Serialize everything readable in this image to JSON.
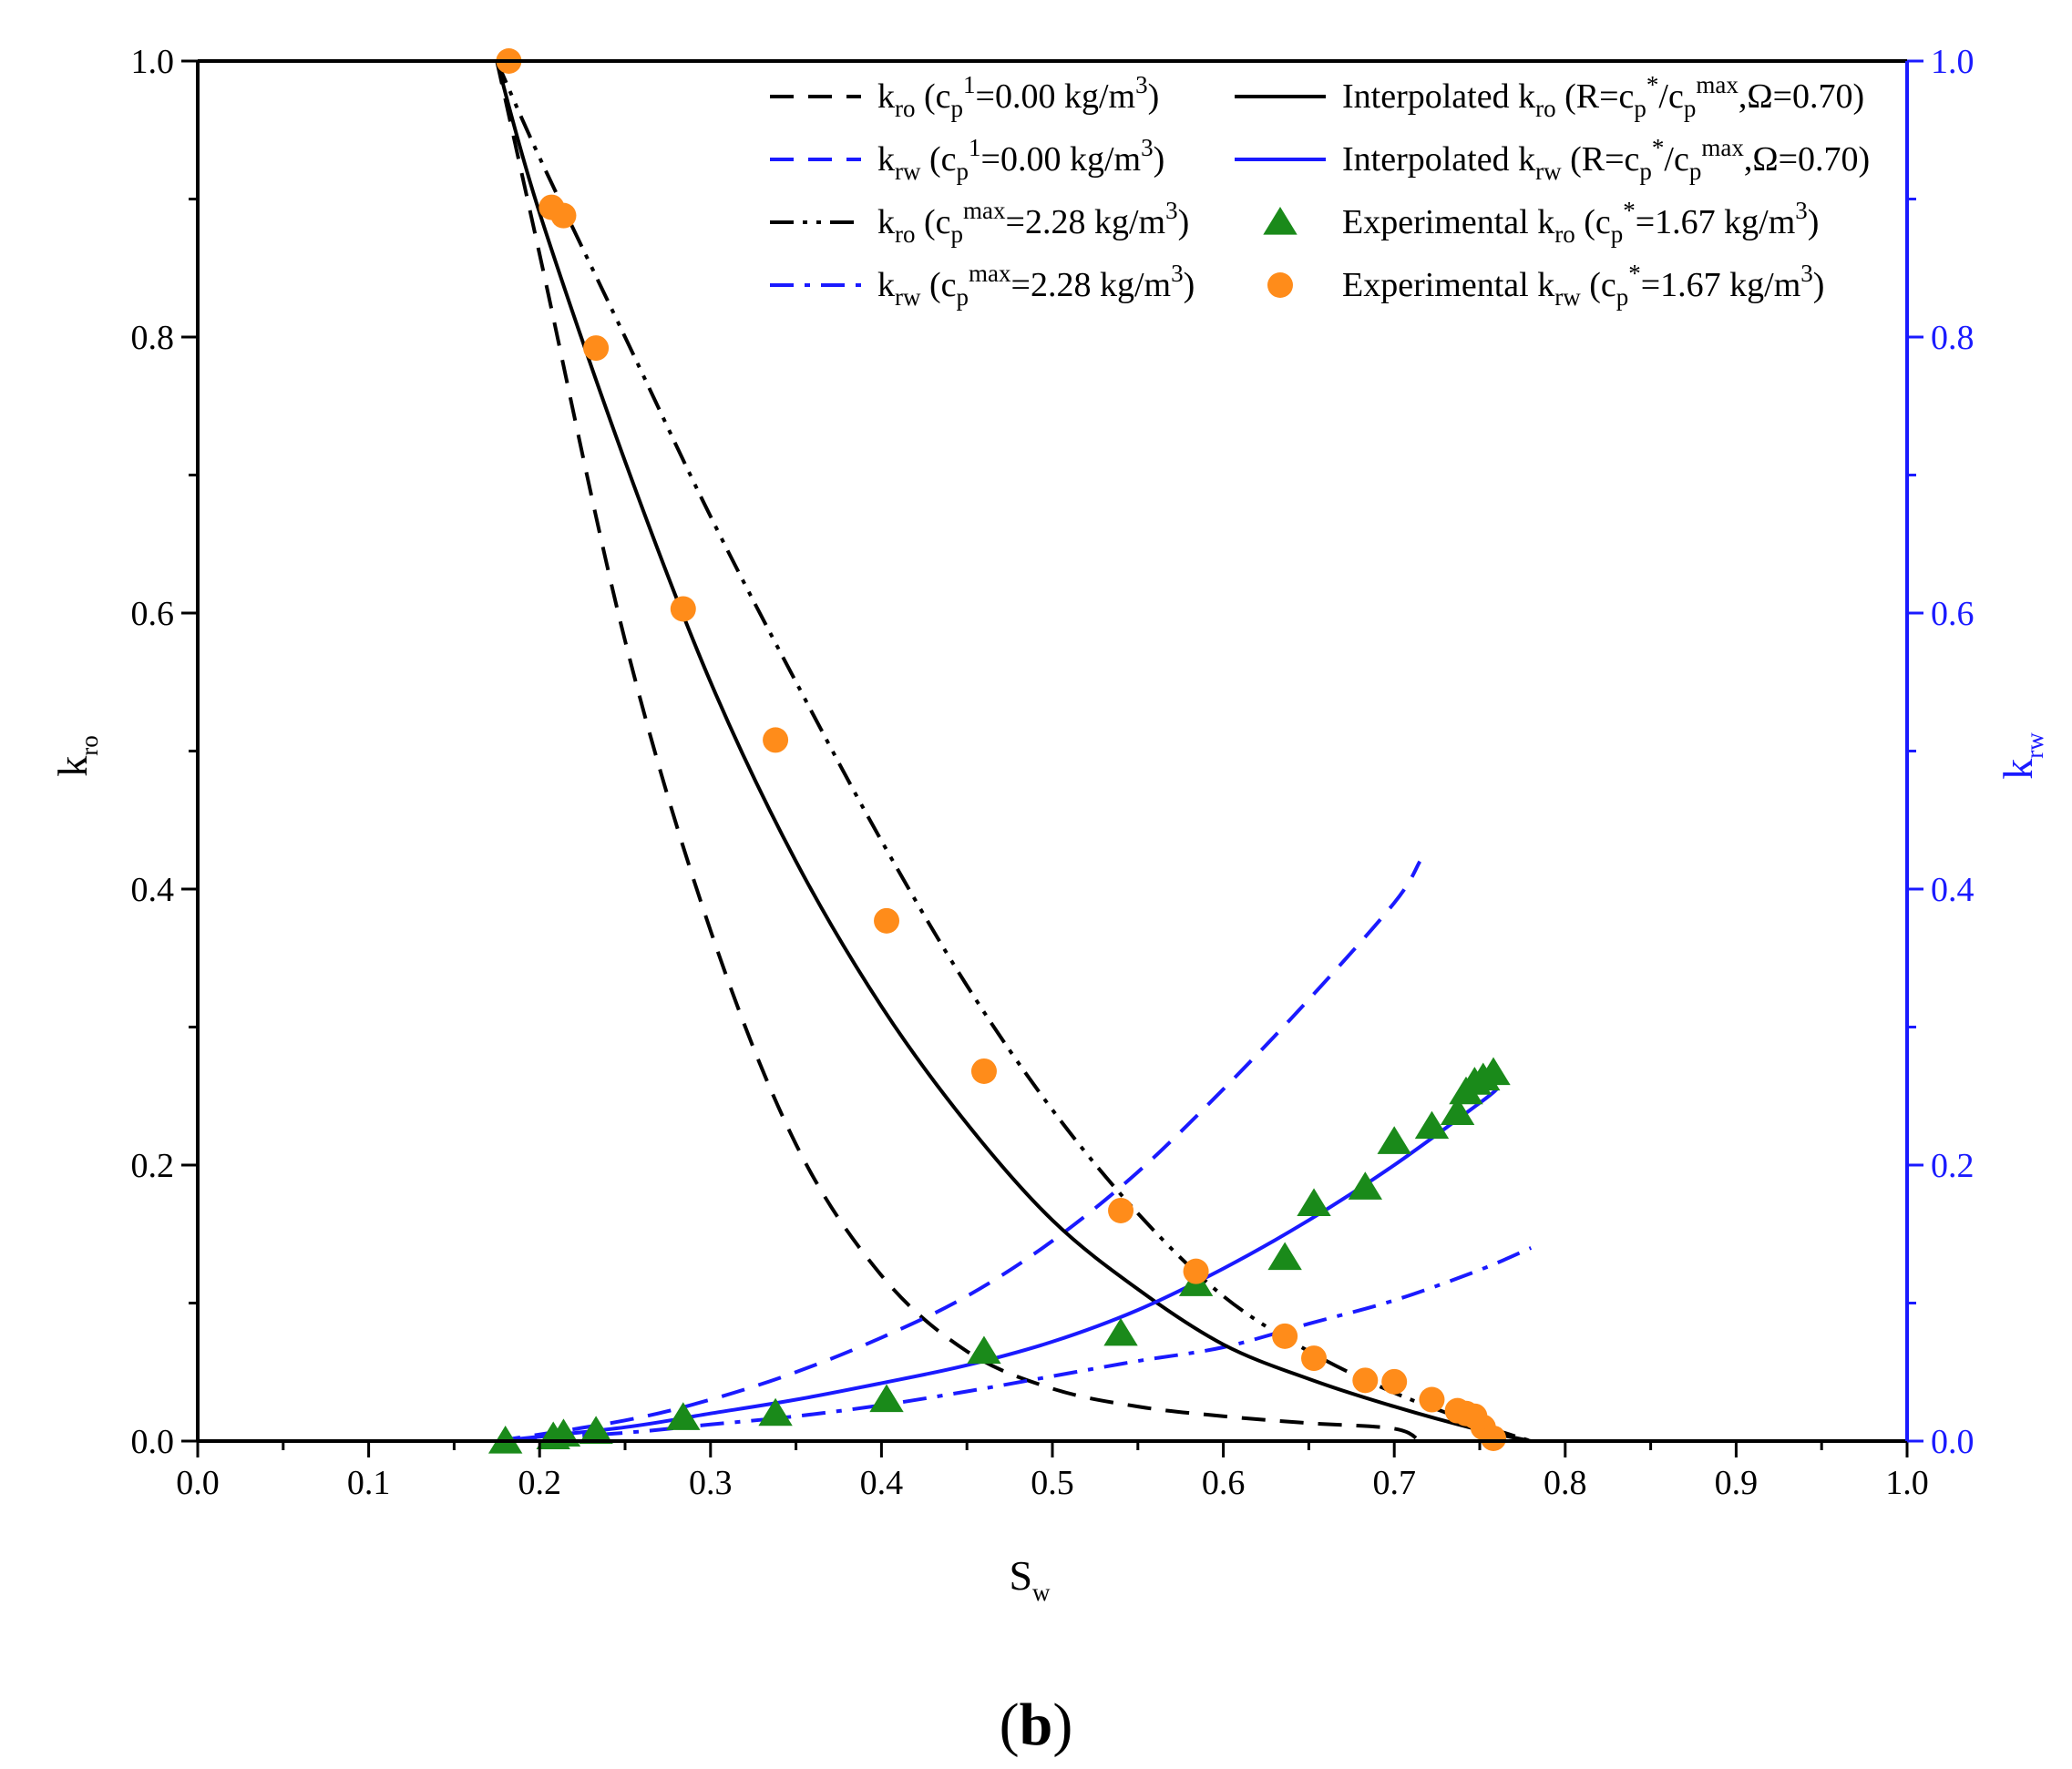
{
  "chart_data": {
    "type": "line",
    "panel_label": "b",
    "x_axis": {
      "label": "S",
      "label_sub": "w",
      "range": [
        0.0,
        1.0
      ],
      "ticks": [
        0.0,
        0.1,
        0.2,
        0.3,
        0.4,
        0.5,
        0.6,
        0.7,
        0.8,
        0.9,
        1.0
      ],
      "tick_labels": [
        "0.0",
        "0.1",
        "0.2",
        "0.3",
        "0.4",
        "0.5",
        "0.6",
        "0.7",
        "0.8",
        "0.9",
        "1.0"
      ]
    },
    "y_left": {
      "label": "k",
      "label_sub": "ro",
      "range": [
        0.0,
        1.0
      ],
      "ticks": [
        0.0,
        0.2,
        0.4,
        0.6,
        0.8,
        1.0
      ],
      "tick_labels": [
        "0.0",
        "0.2",
        "0.4",
        "0.6",
        "0.8",
        "1.0"
      ],
      "color": "#000000"
    },
    "y_right": {
      "label": "k",
      "label_sub": "rw",
      "range": [
        0.0,
        1.0
      ],
      "ticks": [
        0.0,
        0.2,
        0.4,
        0.6,
        0.8,
        1.0
      ],
      "tick_labels": [
        "0.0",
        "0.2",
        "0.4",
        "0.6",
        "0.8",
        "1.0"
      ],
      "color": "#1a1aff"
    },
    "series": [
      {
        "name": "kro_c1",
        "style": "dashed",
        "color": "#000000",
        "legend": [
          {
            "t": "k"
          },
          {
            "t": "ro",
            "s": "sub"
          },
          {
            "t": " (c"
          },
          {
            "t": "p",
            "s": "sub"
          },
          {
            "t": "1",
            "s": "sup"
          },
          {
            "t": "=0.00 kg/m"
          },
          {
            "t": "3",
            "s": "sup"
          },
          {
            "t": ")"
          }
        ],
        "x": [
          0.175,
          0.2,
          0.25,
          0.3,
          0.35,
          0.4,
          0.45,
          0.5,
          0.55,
          0.6,
          0.65,
          0.7,
          0.715
        ],
        "y": [
          1.0,
          0.86,
          0.58,
          0.37,
          0.215,
          0.12,
          0.065,
          0.038,
          0.025,
          0.018,
          0.013,
          0.009,
          0.0
        ]
      },
      {
        "name": "krw_c1",
        "style": "dashed",
        "color": "#1a1aff",
        "legend": [
          {
            "t": "k"
          },
          {
            "t": "rw",
            "s": "sub"
          },
          {
            "t": " (c"
          },
          {
            "t": "p",
            "s": "sub"
          },
          {
            "t": "1",
            "s": "sup"
          },
          {
            "t": "=0.00 kg/m"
          },
          {
            "t": "3",
            "s": "sup"
          },
          {
            "t": ")"
          }
        ],
        "x": [
          0.175,
          0.25,
          0.3,
          0.35,
          0.4,
          0.45,
          0.5,
          0.55,
          0.6,
          0.65,
          0.7,
          0.715
        ],
        "y": [
          0.0,
          0.015,
          0.03,
          0.05,
          0.075,
          0.105,
          0.145,
          0.195,
          0.255,
          0.32,
          0.39,
          0.42
        ]
      },
      {
        "name": "kro_cmax",
        "style": "dashdotdot",
        "color": "#000000",
        "legend": [
          {
            "t": "k"
          },
          {
            "t": "ro",
            "s": "sub"
          },
          {
            "t": " (c"
          },
          {
            "t": "p",
            "s": "sub"
          },
          {
            "t": "max",
            "s": "sup"
          },
          {
            "t": "=2.28 kg/m"
          },
          {
            "t": "3",
            "s": "sup"
          },
          {
            "t": ")"
          }
        ],
        "x": [
          0.175,
          0.2,
          0.25,
          0.3,
          0.35,
          0.4,
          0.45,
          0.5,
          0.55,
          0.6,
          0.65,
          0.7,
          0.75,
          0.78
        ],
        "y": [
          1.0,
          0.93,
          0.8,
          0.67,
          0.55,
          0.435,
          0.33,
          0.24,
          0.165,
          0.105,
          0.065,
          0.035,
          0.012,
          0.0
        ]
      },
      {
        "name": "krw_cmax",
        "style": "dashdot",
        "color": "#1a1aff",
        "legend": [
          {
            "t": "k"
          },
          {
            "t": "rw",
            "s": "sub"
          },
          {
            "t": " (c"
          },
          {
            "t": "p",
            "s": "sub"
          },
          {
            "t": "max",
            "s": "sup"
          },
          {
            "t": "=2.28 kg/m"
          },
          {
            "t": "3",
            "s": "sup"
          },
          {
            "t": ")"
          }
        ],
        "x": [
          0.175,
          0.25,
          0.3,
          0.35,
          0.4,
          0.45,
          0.5,
          0.55,
          0.6,
          0.65,
          0.7,
          0.75,
          0.78
        ],
        "y": [
          0.0,
          0.006,
          0.012,
          0.018,
          0.026,
          0.036,
          0.047,
          0.058,
          0.068,
          0.085,
          0.102,
          0.124,
          0.14
        ]
      },
      {
        "name": "kro_interp",
        "style": "solid",
        "color": "#000000",
        "legend": [
          {
            "t": "Interpolated k"
          },
          {
            "t": "ro",
            "s": "sub"
          },
          {
            "t": " (R=c"
          },
          {
            "t": "p",
            "s": "sub"
          },
          {
            "t": "*",
            "s": "sup"
          },
          {
            "t": "/c"
          },
          {
            "t": "p",
            "s": "sub"
          },
          {
            "t": "max",
            "s": "sup"
          },
          {
            "t": ",Ω=0.70)"
          }
        ],
        "x": [
          0.175,
          0.2,
          0.25,
          0.3,
          0.35,
          0.4,
          0.45,
          0.5,
          0.55,
          0.6,
          0.65,
          0.7,
          0.75,
          0.78
        ],
        "y": [
          1.0,
          0.89,
          0.71,
          0.55,
          0.42,
          0.315,
          0.23,
          0.16,
          0.11,
          0.07,
          0.045,
          0.025,
          0.008,
          0.0
        ]
      },
      {
        "name": "krw_interp",
        "style": "solid",
        "color": "#1a1aff",
        "legend": [
          {
            "t": "Interpolated k"
          },
          {
            "t": "rw",
            "s": "sub"
          },
          {
            "t": " (R=c"
          },
          {
            "t": "p",
            "s": "sub"
          },
          {
            "t": "*",
            "s": "sup"
          },
          {
            "t": "/c"
          },
          {
            "t": "p",
            "s": "sub"
          },
          {
            "t": "max",
            "s": "sup"
          },
          {
            "t": ",Ω=0.70)"
          }
        ],
        "x": [
          0.175,
          0.25,
          0.3,
          0.35,
          0.4,
          0.45,
          0.5,
          0.55,
          0.6,
          0.65,
          0.7,
          0.75,
          0.76
        ],
        "y": [
          0.0,
          0.01,
          0.02,
          0.03,
          0.042,
          0.055,
          0.072,
          0.095,
          0.125,
          0.16,
          0.2,
          0.245,
          0.255
        ]
      }
    ],
    "scatter": [
      {
        "name": "kro_exp",
        "marker": "triangle",
        "color": "#1a8a1a",
        "legend": [
          {
            "t": "Experimental k"
          },
          {
            "t": "ro",
            "s": "sub"
          },
          {
            "t": " (c"
          },
          {
            "t": "p",
            "s": "sub"
          },
          {
            "t": "*",
            "s": "sup"
          },
          {
            "t": "=1.67 kg/m"
          },
          {
            "t": "3",
            "s": "sup"
          },
          {
            "t": ")"
          }
        ],
        "x": [
          0.18,
          0.208,
          0.214,
          0.233,
          0.284,
          0.338,
          0.403,
          0.46,
          0.54,
          0.584,
          0.636,
          0.653,
          0.683,
          0.7,
          0.722,
          0.737,
          0.742,
          0.747,
          0.752,
          0.758
        ],
        "y": [
          0.0,
          0.003,
          0.005,
          0.007,
          0.017,
          0.02,
          0.03,
          0.065,
          0.078,
          0.114,
          0.133,
          0.172,
          0.184,
          0.217,
          0.228,
          0.238,
          0.253,
          0.26,
          0.263,
          0.267
        ]
      },
      {
        "name": "krw_exp",
        "marker": "circle",
        "color": "#ff8c1a",
        "legend": [
          {
            "t": "Experimental k"
          },
          {
            "t": "rw",
            "s": "sub"
          },
          {
            "t": " (c"
          },
          {
            "t": "p",
            "s": "sub"
          },
          {
            "t": "*",
            "s": "sup"
          },
          {
            "t": "=1.67 kg/m"
          },
          {
            "t": "3",
            "s": "sup"
          },
          {
            "t": ")"
          }
        ],
        "x": [
          0.182,
          0.207,
          0.214,
          0.233,
          0.284,
          0.338,
          0.403,
          0.46,
          0.54,
          0.584,
          0.636,
          0.653,
          0.683,
          0.7,
          0.722,
          0.737,
          0.742,
          0.747,
          0.752,
          0.758
        ],
        "y": [
          1.0,
          0.894,
          0.888,
          0.792,
          0.603,
          0.508,
          0.377,
          0.268,
          0.167,
          0.123,
          0.076,
          0.06,
          0.044,
          0.043,
          0.03,
          0.022,
          0.02,
          0.018,
          0.01,
          0.002
        ]
      }
    ]
  }
}
